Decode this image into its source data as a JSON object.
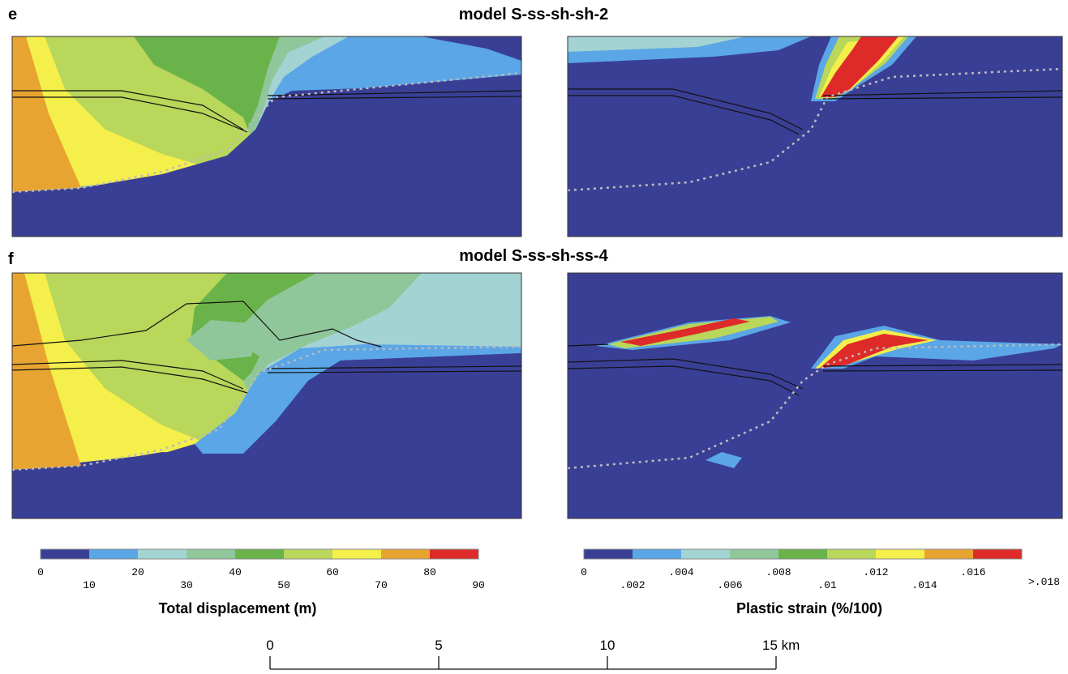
{
  "panels": [
    {
      "label": "e",
      "title": "model S-ss-sh-sh-2"
    },
    {
      "label": "f",
      "title": "model S-ss-sh-ss-4"
    }
  ],
  "colorbars": [
    {
      "colors": [
        "#3a3f96",
        "#5aa6e6",
        "#a3d3d3",
        "#8fc79a",
        "#6ab34a",
        "#b9d75a",
        "#f4ef4a",
        "#e8a430",
        "#df2a2a"
      ],
      "ticks": [
        "0",
        "10",
        "20",
        "30",
        "40",
        "50",
        "60",
        "70",
        "80",
        "90"
      ],
      "caption": "Total displacement (m)"
    },
    {
      "colors": [
        "#3a3f96",
        "#5aa6e6",
        "#a3d3d3",
        "#8fc79a",
        "#6ab34a",
        "#b9d75a",
        "#f4ef4a",
        "#e8a430",
        "#df2a2a"
      ],
      "ticks": [
        "0",
        ".002",
        ".004",
        ".006",
        ".008",
        ".01",
        ".012",
        ".014",
        ".016",
        ">.018"
      ],
      "caption": "Plastic strain (%/100)"
    }
  ],
  "scale_bar": {
    "ticks": [
      "0",
      "5",
      "10",
      "15 km"
    ]
  }
}
